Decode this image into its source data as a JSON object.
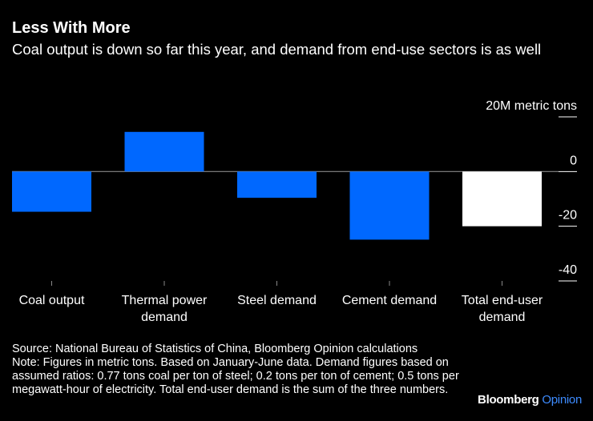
{
  "header": {
    "title": "Less With More",
    "subtitle": "Coal output is down so far this year, and demand from end-use sectors is as well"
  },
  "chart_data": {
    "type": "bar",
    "title": "Less With More",
    "subtitle": "Coal output is down so far this year, and demand from end-use sectors is as well",
    "categories": [
      [
        "Coal output"
      ],
      [
        "Thermal power",
        "demand"
      ],
      [
        "Steel demand"
      ],
      [
        "Cement demand"
      ],
      [
        "Total end-user",
        "demand"
      ]
    ],
    "values": [
      -14.7,
      14.5,
      -9.6,
      -24.9,
      -20.0
    ],
    "bar_colors": [
      "#0068ff",
      "#0068ff",
      "#0068ff",
      "#0068ff",
      "#ffffff"
    ],
    "unit_label": "20M metric tons",
    "yticks": [
      20,
      0,
      -20,
      -40
    ],
    "ytick_labels": [
      "20M metric tons",
      "0",
      "-20",
      "-40"
    ],
    "ylim": [
      -40,
      20
    ],
    "grid": false,
    "y_axis_position": "right"
  },
  "footer": {
    "source": "Source: National Bureau of Statistics of China, Bloomberg Opinion calculations",
    "note": "Note: Figures in metric tons. Based on January-June data. Demand figures based on assumed ratios: 0.77 tons coal per ton of steel; 0.2 tons per ton of cement; 0.5 tons per megawatt-hour of electricity. Total end-user demand is the sum of the three numbers."
  },
  "logo": {
    "brand": "Bloomberg",
    "section": "Opinion",
    "section_color": "#3d8bff"
  }
}
